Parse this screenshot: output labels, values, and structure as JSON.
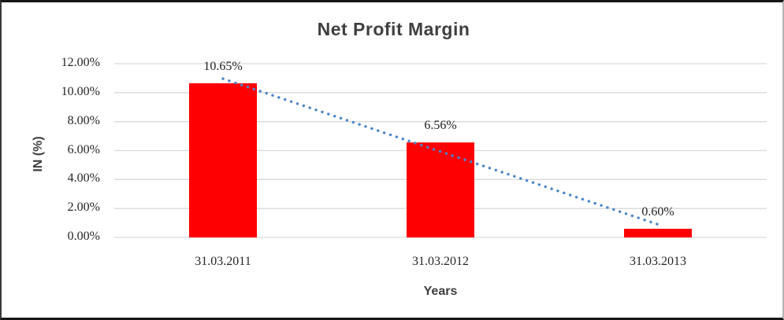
{
  "chart_data": {
    "type": "bar",
    "title": "Net Profit Margin",
    "xlabel": "Years",
    "ylabel": "IN (%)",
    "categories": [
      "31.03.2011",
      "31.03.2012",
      "31.03.2013"
    ],
    "values": [
      10.65,
      6.56,
      0.6
    ],
    "data_labels": [
      "10.65%",
      "6.56%",
      "0.60%"
    ],
    "ylim": [
      0,
      12
    ],
    "ytick_step": 2,
    "ytick_labels": [
      "0.00%",
      "2.00%",
      "4.00%",
      "6.00%",
      "8.00%",
      "10.00%",
      "12.00%"
    ],
    "grid": "horizontal",
    "legend": "none",
    "colors": {
      "bar": "#ff0000",
      "trendline": "#4a86c8",
      "gridline": "#d9d9d9",
      "title_text": "#3f3f3f",
      "tick_text": "#262626"
    },
    "trendline": {
      "style": "dotted",
      "start_value": 10.96,
      "end_value": 0.9
    }
  }
}
